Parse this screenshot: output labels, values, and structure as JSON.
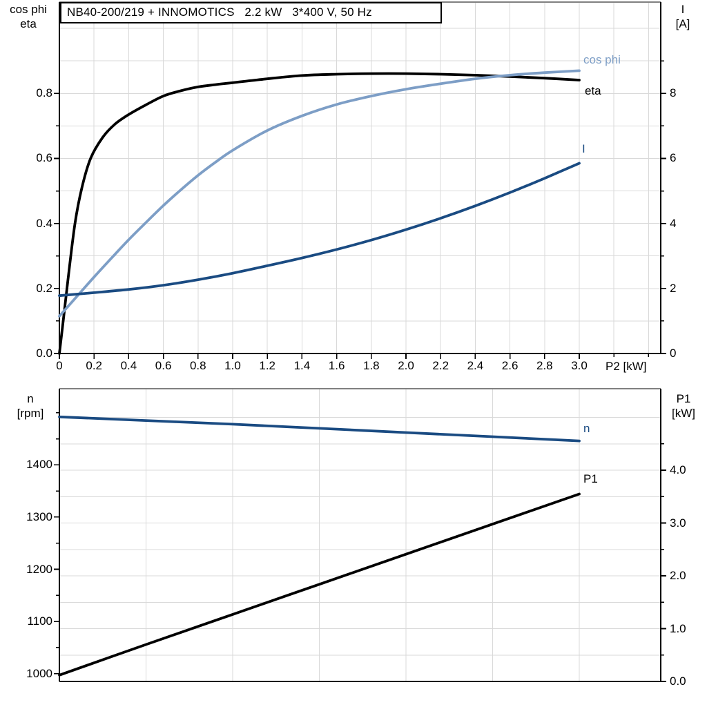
{
  "colors": {
    "eta": "#000000",
    "cos_phi": "#7d9ec6",
    "current": "#1a4b82",
    "n": "#1a4b82",
    "p1": "#000000",
    "grid": "#d9d9d9",
    "frame_top": "#808080",
    "axis": "#000000"
  },
  "chart_data": [
    {
      "type": "line",
      "title": "NB40-200/219 + INNOMOTICS   2.2 kW   3*400 V, 50 Hz",
      "x_axis": {
        "title": "P2 [kW]",
        "lim": [
          0,
          3.47
        ],
        "ticks": [
          {
            "v": 0,
            "label": "0"
          },
          {
            "v": 0.2,
            "label": "0.2"
          },
          {
            "v": 0.4,
            "label": "0.4"
          },
          {
            "v": 0.6,
            "label": "0.6"
          },
          {
            "v": 0.8,
            "label": "0.8"
          },
          {
            "v": 1.0,
            "label": "1.0"
          },
          {
            "v": 1.2,
            "label": "1.2"
          },
          {
            "v": 1.4,
            "label": "1.4"
          },
          {
            "v": 1.6,
            "label": "1.6"
          },
          {
            "v": 1.8,
            "label": "1.8"
          },
          {
            "v": 2.0,
            "label": "2.0"
          },
          {
            "v": 2.2,
            "label": "2.2"
          },
          {
            "v": 2.4,
            "label": "2.4"
          },
          {
            "v": 2.6,
            "label": "2.6"
          },
          {
            "v": 2.8,
            "label": "2.8"
          },
          {
            "v": 3.0,
            "label": "3.0"
          }
        ],
        "minor": [
          3.2,
          3.4
        ]
      },
      "left_axis": {
        "title_lines": [
          "cos phi",
          "eta"
        ],
        "lim": [
          0,
          1.081
        ],
        "ticks": [
          {
            "v": 0.0,
            "label": "0.0"
          },
          {
            "v": 0.2,
            "label": "0.2"
          },
          {
            "v": 0.4,
            "label": "0.4"
          },
          {
            "v": 0.6,
            "label": "0.6"
          },
          {
            "v": 0.8,
            "label": "0.8"
          }
        ],
        "minor": [
          0.1,
          0.3,
          0.5,
          0.7
        ]
      },
      "right_axis": {
        "title_lines": [
          "I",
          "[A]"
        ],
        "lim": [
          0,
          10.81
        ],
        "ticks": [
          {
            "v": 0,
            "label": "0"
          },
          {
            "v": 2,
            "label": "2"
          },
          {
            "v": 4,
            "label": "4"
          },
          {
            "v": 6,
            "label": "6"
          },
          {
            "v": 8,
            "label": "8"
          }
        ],
        "minor": [
          1,
          3,
          5,
          7,
          9
        ]
      },
      "grid": {
        "v_values": [
          0.2,
          0.4,
          0.6,
          0.8,
          1.0,
          1.2,
          1.4,
          1.6,
          1.8,
          2.0,
          2.2,
          2.4,
          2.6,
          2.8,
          3.0,
          3.2,
          3.4
        ],
        "h_axis": "left",
        "h_values": [
          0.1,
          0.2,
          0.3,
          0.4,
          0.5,
          0.6,
          0.7,
          0.8,
          0.9,
          1.0
        ]
      },
      "series": [
        {
          "name": "eta",
          "label": "eta",
          "label_name": "curve-label-eta",
          "axis": "left",
          "color": "#000000",
          "label_offset": [
            8,
            16
          ],
          "x": [
            0,
            0.02,
            0.05,
            0.09,
            0.13,
            0.18,
            0.25,
            0.32,
            0.4,
            0.5,
            0.6,
            0.7,
            0.8,
            0.9,
            1.0,
            1.2,
            1.4,
            1.6,
            1.8,
            2.0,
            2.2,
            2.4,
            2.6,
            2.8,
            3.0
          ],
          "y": [
            0,
            0.09,
            0.23,
            0.4,
            0.51,
            0.6,
            0.665,
            0.705,
            0.735,
            0.765,
            0.792,
            0.808,
            0.82,
            0.827,
            0.833,
            0.845,
            0.855,
            0.859,
            0.861,
            0.861,
            0.859,
            0.856,
            0.852,
            0.847,
            0.841
          ]
        },
        {
          "name": "cos phi",
          "label": "cos phi",
          "label_name": "curve-label-cos-phi",
          "axis": "left",
          "color": "#7d9ec6",
          "label_offset": [
            6,
            -15
          ],
          "x": [
            0,
            0.1,
            0.2,
            0.3,
            0.4,
            0.5,
            0.6,
            0.7,
            0.8,
            0.9,
            1.0,
            1.2,
            1.4,
            1.6,
            1.8,
            2.0,
            2.2,
            2.4,
            2.6,
            2.8,
            3.0
          ],
          "y": [
            0.115,
            0.175,
            0.235,
            0.293,
            0.35,
            0.403,
            0.455,
            0.503,
            0.548,
            0.588,
            0.625,
            0.686,
            0.731,
            0.766,
            0.792,
            0.813,
            0.83,
            0.845,
            0.856,
            0.864,
            0.87
          ]
        },
        {
          "name": "I",
          "label": "I",
          "label_name": "curve-label-current",
          "axis": "right",
          "color": "#1a4b82",
          "label_offset": [
            4,
            -21
          ],
          "x": [
            0,
            0.2,
            0.4,
            0.6,
            0.8,
            1.0,
            1.2,
            1.4,
            1.6,
            1.8,
            2.0,
            2.2,
            2.4,
            2.6,
            2.8,
            3.0
          ],
          "y": [
            1.78,
            1.87,
            1.97,
            2.1,
            2.27,
            2.47,
            2.7,
            2.94,
            3.2,
            3.49,
            3.81,
            4.16,
            4.54,
            4.95,
            5.39,
            5.85
          ]
        }
      ]
    },
    {
      "type": "line",
      "title": "",
      "x_axis": {
        "title": "",
        "lim": [
          0,
          3.47
        ],
        "ticks": [],
        "minor": []
      },
      "left_axis": {
        "title_lines": [
          "n",
          "[rpm]"
        ],
        "lim": [
          985,
          1546
        ],
        "ticks": [
          {
            "v": 1000,
            "label": "1000"
          },
          {
            "v": 1100,
            "label": "1100"
          },
          {
            "v": 1200,
            "label": "1200"
          },
          {
            "v": 1300,
            "label": "1300"
          },
          {
            "v": 1400,
            "label": "1400"
          }
        ],
        "minor": [
          1050,
          1150,
          1250,
          1350,
          1450,
          1500
        ]
      },
      "right_axis": {
        "title_lines": [
          "P1",
          "[kW]"
        ],
        "lim": [
          0,
          5.543
        ],
        "ticks": [
          {
            "v": 0.0,
            "label": "0.0"
          },
          {
            "v": 1.0,
            "label": "1.0"
          },
          {
            "v": 2.0,
            "label": "2.0"
          },
          {
            "v": 3.0,
            "label": "3.0"
          },
          {
            "v": 4.0,
            "label": "4.0"
          }
        ],
        "minor": [
          0.5,
          1.5,
          2.5,
          3.5,
          4.5
        ]
      },
      "grid": {
        "v_values": [
          0.5,
          1.0,
          1.5,
          2.0,
          2.5,
          3.0
        ],
        "h_axis": "right",
        "h_values": [
          0.5,
          1.0,
          1.5,
          2.0,
          2.5,
          3.0,
          3.5,
          4.0,
          4.5,
          5.0
        ]
      },
      "series": [
        {
          "name": "n",
          "label": "n",
          "label_name": "curve-label-n",
          "axis": "left",
          "color": "#1a4b82",
          "label_offset": [
            6,
            -18
          ],
          "x": [
            0,
            0.5,
            1.0,
            1.5,
            2.0,
            2.5,
            3.0
          ],
          "y": [
            1492,
            1485,
            1478,
            1470,
            1462,
            1454,
            1446
          ]
        },
        {
          "name": "P1",
          "label": "P1",
          "label_name": "curve-label-p1",
          "axis": "right",
          "color": "#000000",
          "label_offset": [
            6,
            -22
          ],
          "x": [
            0,
            0.5,
            1.0,
            1.5,
            2.0,
            2.5,
            3.0
          ],
          "y": [
            0.12,
            0.7,
            1.27,
            1.84,
            2.41,
            2.98,
            3.55
          ]
        }
      ]
    }
  ]
}
